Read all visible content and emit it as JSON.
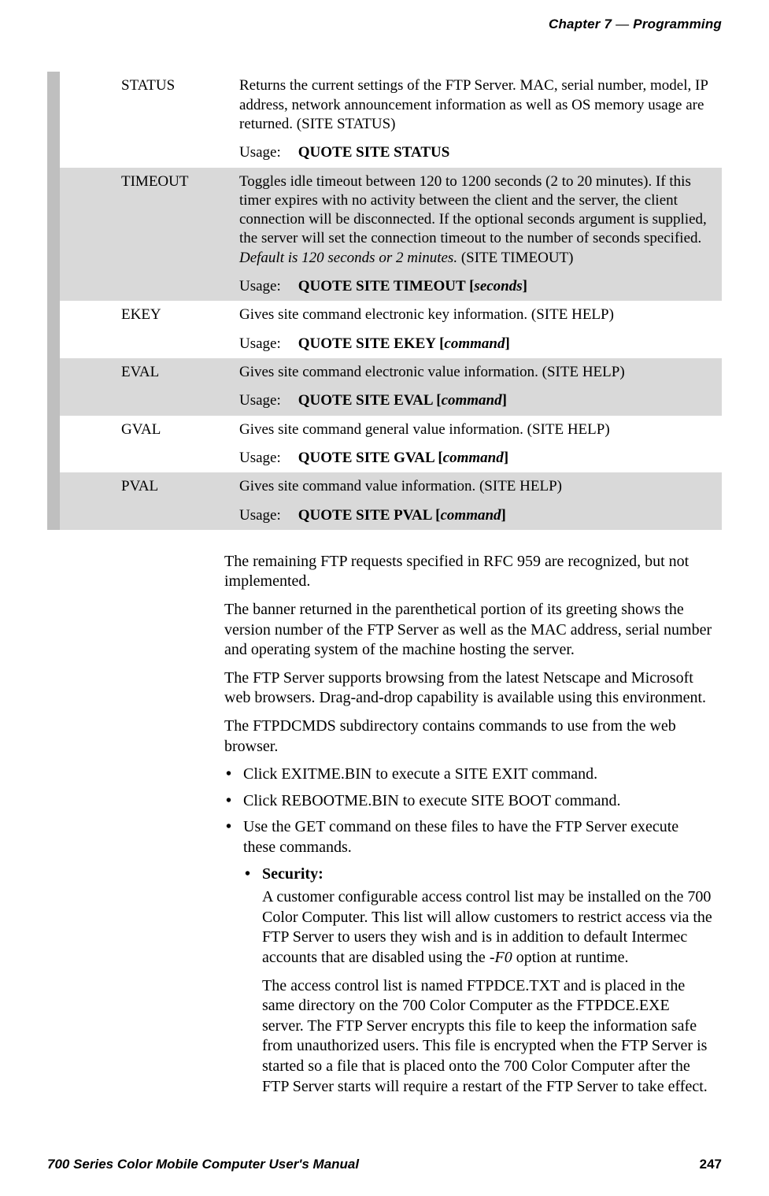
{
  "header": {
    "chapter_label": "Chapter 7",
    "dash": "—",
    "section": "Programming"
  },
  "table": {
    "rows": [
      {
        "shaded": false,
        "name": "STATUS",
        "desc": "Returns the current settings of the FTP Server. MAC, serial number, model, IP address, network announcement information as well as OS memory usage are returned. (SITE STATUS)",
        "usage_label": "Usage:",
        "usage_cmd": "QUOTE SITE STATUS",
        "usage_arg": ""
      },
      {
        "shaded": true,
        "name": "TIMEOUT",
        "desc_pre": "Toggles idle timeout between 120 to 1200 seconds (2 to 20 minutes). If this timer expires with no activity between the client and the server, the client connection will be disconnected. If the optional seconds argument is supplied, the server will set the connection timeout to the number of seconds specified. ",
        "desc_italic": "Default is 120 seconds or 2 minutes.",
        "desc_post": " (SITE TIMEOUT)",
        "usage_label": "Usage:",
        "usage_cmd": "QUOTE SITE TIMEOUT",
        "usage_arg": "seconds"
      },
      {
        "shaded": false,
        "name": "EKEY",
        "desc": "Gives site command electronic key information. (SITE HELP)",
        "usage_label": "Usage:",
        "usage_cmd": "QUOTE SITE EKEY",
        "usage_arg": "command"
      },
      {
        "shaded": true,
        "name": "EVAL",
        "desc": "Gives site command electronic value information. (SITE HELP)",
        "usage_label": "Usage:",
        "usage_cmd": "QUOTE SITE EVAL",
        "usage_arg": "command"
      },
      {
        "shaded": false,
        "name": "GVAL",
        "desc": "Gives site command general value information. (SITE HELP)",
        "usage_label": "Usage:",
        "usage_cmd": "QUOTE SITE GVAL",
        "usage_arg": "command"
      },
      {
        "shaded": true,
        "name": "PVAL",
        "desc": "Gives site command value information. (SITE HELP)",
        "usage_label": "Usage:",
        "usage_cmd": "QUOTE SITE PVAL",
        "usage_arg": "command"
      }
    ]
  },
  "body": {
    "p1": "The remaining FTP requests specified in RFC 959 are recognized, but not implemented.",
    "p2": "The banner returned in the parenthetical portion of its greeting shows the version number of the FTP Server as well as the MAC address, serial number and operating system of the machine hosting the server.",
    "p3": "The FTP Server supports browsing from the latest Netscape and Microsoft web browsers. Drag-and-drop capability is available using this environment.",
    "p4": "The FTPDCMDS subdirectory contains commands to use from the web browser.",
    "bullets": {
      "b1": "Click EXITME.BIN to execute a SITE EXIT command.",
      "b2": "Click REBOOTME.BIN to execute SITE BOOT command.",
      "b3": "Use the GET command on these files to have the FTP Server execute these commands.",
      "sec_label": "Security",
      "sec_p1_pre": "A customer configurable access control list may be installed on the 700 Color Computer. This list will allow customers to restrict access via the FTP Server to users they wish and is in addition to default Intermec accounts that are disabled using the ",
      "sec_p1_italic": "-F0",
      "sec_p1_post": " option at runtime.",
      "sec_p2": "The access control list is named FTPDCE.TXT and is placed in the same directory on the 700 Color Computer as the FTPDCE.EXE server. The FTP Server encrypts this file to keep the information safe from unauthorized users. This file is encrypted when the FTP Server is started so a file that is placed onto the 700 Color Computer after the FTP Server starts will require a restart of the FTP Server to take effect."
    }
  },
  "footer": {
    "manual": "700 Series Color Mobile Computer User's Manual",
    "page": "247"
  },
  "colors": {
    "bar": "#bfbfbf",
    "shaded_row": "#d9d9d9",
    "background": "#ffffff",
    "text": "#000000"
  },
  "fonts": {
    "body_family": "Garamond/Georgia serif",
    "header_family": "Gill Sans / sans-serif",
    "body_size_pt": 14,
    "table_size_pt": 13,
    "header_size_pt": 12
  }
}
